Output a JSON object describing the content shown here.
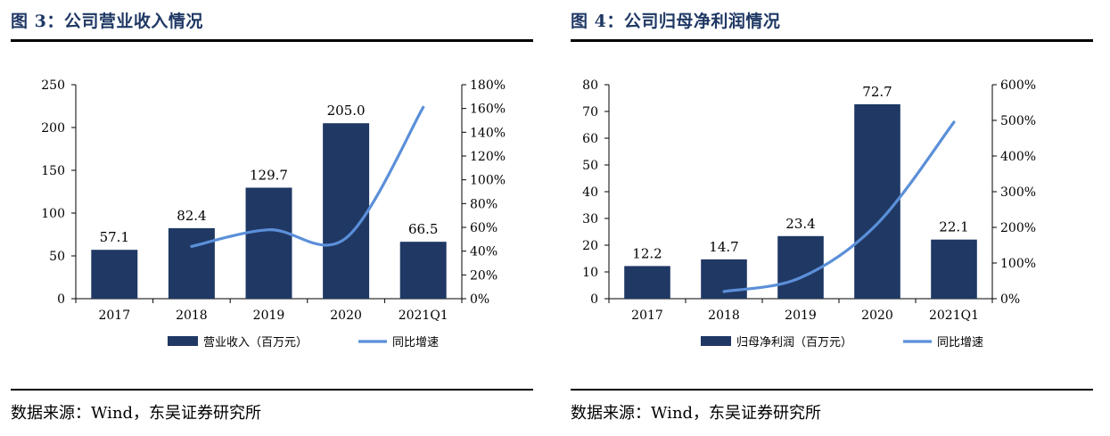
{
  "colors": {
    "bar": "#1f3864",
    "line": "#5b8fd9",
    "title": "#1f3864"
  },
  "panels": [
    {
      "title": "图 3：公司营业收入情况",
      "source": "数据来源：Wind，东吴证券研究所",
      "chart_data": {
        "type": "bar",
        "categories": [
          "2017",
          "2018",
          "2019",
          "2020",
          "2021Q1"
        ],
        "series": [
          {
            "name": "营业收入（百万元）",
            "type": "bar",
            "axis": "left",
            "values": [
              57.1,
              82.4,
              129.7,
              205.0,
              66.5
            ],
            "labels": [
              "57.1",
              "82.4",
              "129.7",
              "205.0",
              "66.5"
            ]
          },
          {
            "name": "同比增速",
            "type": "line",
            "axis": "right",
            "values": [
              null,
              44.0,
              58.0,
              51.0,
              161.0
            ]
          }
        ],
        "ylim": [
          0,
          250
        ],
        "yticks": [
          "0",
          "50",
          "100",
          "150",
          "200",
          "250"
        ],
        "y2lim": [
          0,
          180
        ],
        "y2ticks": [
          "0%",
          "20%",
          "40%",
          "60%",
          "80%",
          "100%",
          "120%",
          "140%",
          "160%",
          "180%"
        ],
        "legend_position": "bottom"
      }
    },
    {
      "title": "图 4：公司归母净利润情况",
      "source": "数据来源：Wind，东吴证券研究所",
      "chart_data": {
        "type": "bar",
        "categories": [
          "2017",
          "2018",
          "2019",
          "2020",
          "2021Q1"
        ],
        "series": [
          {
            "name": "归母净利润（百万元）",
            "type": "bar",
            "axis": "left",
            "values": [
              12.2,
              14.7,
              23.4,
              72.7,
              22.1
            ],
            "labels": [
              "12.2",
              "14.7",
              "23.4",
              "72.7",
              "22.1"
            ]
          },
          {
            "name": "同比增速",
            "type": "line",
            "axis": "right",
            "values": [
              null,
              20.0,
              59.0,
              210.0,
              495.0
            ]
          }
        ],
        "ylim": [
          0,
          80
        ],
        "yticks": [
          "0",
          "10",
          "20",
          "30",
          "40",
          "50",
          "60",
          "70",
          "80"
        ],
        "y2lim": [
          0,
          600
        ],
        "y2ticks": [
          "0%",
          "100%",
          "200%",
          "300%",
          "400%",
          "500%",
          "600%"
        ],
        "legend_position": "bottom"
      }
    }
  ]
}
